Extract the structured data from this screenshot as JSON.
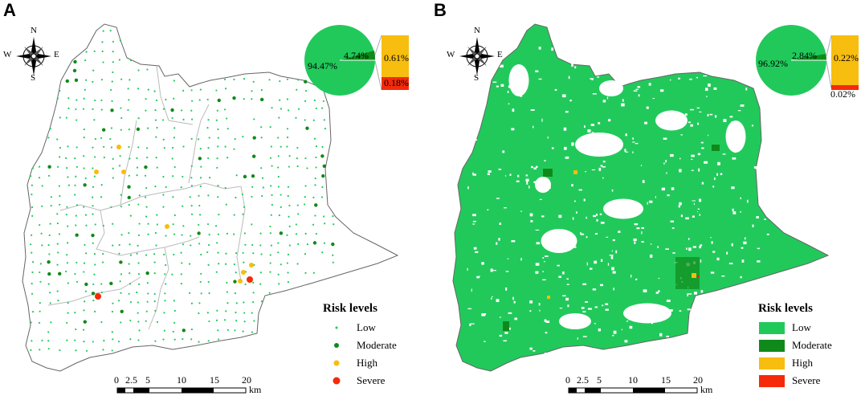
{
  "panels": [
    {
      "letter": "A",
      "pie": {
        "main": "94.47%",
        "moderate": "4.74%",
        "high": "0.61%",
        "severe": "0.18%"
      },
      "legend_style": "dots"
    },
    {
      "letter": "B",
      "pie": {
        "main": "96.92%",
        "moderate": "2.84%",
        "high": "0.22%",
        "severe": "0.02%"
      },
      "legend_style": "boxes"
    }
  ],
  "legend": {
    "title": "Risk levels",
    "items": [
      {
        "label": "Low",
        "color": "#21c95b"
      },
      {
        "label": "Moderate",
        "color": "#0f8a1a"
      },
      {
        "label": "High",
        "color": "#f7bd0f"
      },
      {
        "label": "Severe",
        "color": "#f42a0a"
      }
    ]
  },
  "compass": {
    "n": "N",
    "s": "S",
    "e": "E",
    "w": "W"
  },
  "scale": {
    "ticks": [
      "0",
      "2.5",
      "5",
      "10",
      "15",
      "20"
    ],
    "unit": "km"
  }
}
